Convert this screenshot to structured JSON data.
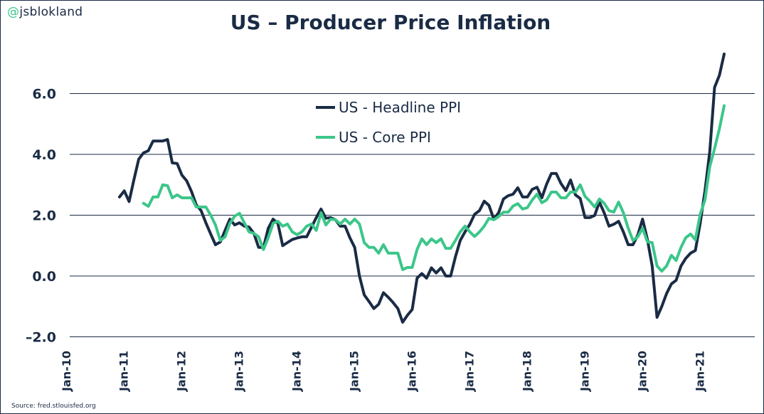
{
  "handle": {
    "at": "@",
    "name": "jsblokland"
  },
  "source": "Source: fred.stlouisfed.org",
  "colors": {
    "headline": "#1a2b45",
    "core": "#3cc68a",
    "grid": "#1a2b45"
  },
  "chart_data": {
    "type": "line",
    "title": "US – Producer Price Inflation",
    "xlabel": "",
    "ylabel": "",
    "ylim": [
      -2.0,
      7.3
    ],
    "yticks": [
      -2.0,
      0.0,
      2.0,
      4.0,
      6.0
    ],
    "ytick_labels": [
      "–2.0",
      "0.0",
      "2.0",
      "4.0",
      "6.0"
    ],
    "xtick_labels": [
      "Jan-10",
      "Jan-11",
      "Jan-12",
      "Jan-13",
      "Jan-14",
      "Jan-15",
      "Jan-16",
      "Jan-17",
      "Jan-18",
      "Jan-19",
      "Jan-20",
      "Jan-21"
    ],
    "grid": "horizontal",
    "legend_position": "top-center",
    "x": [
      "2010-12",
      "2011-01",
      "2011-02",
      "2011-03",
      "2011-04",
      "2011-05",
      "2011-06",
      "2011-07",
      "2011-08",
      "2011-09",
      "2011-10",
      "2011-11",
      "2011-12",
      "2012-01",
      "2012-02",
      "2012-03",
      "2012-04",
      "2012-05",
      "2012-06",
      "2012-07",
      "2012-08",
      "2012-09",
      "2012-10",
      "2012-11",
      "2012-12",
      "2013-01",
      "2013-02",
      "2013-03",
      "2013-04",
      "2013-05",
      "2013-06",
      "2013-07",
      "2013-08",
      "2013-09",
      "2013-10",
      "2013-11",
      "2013-12",
      "2014-01",
      "2014-02",
      "2014-03",
      "2014-04",
      "2014-05",
      "2014-06",
      "2014-07",
      "2014-08",
      "2014-09",
      "2014-10",
      "2014-11",
      "2014-12",
      "2015-01",
      "2015-02",
      "2015-03",
      "2015-04",
      "2015-05",
      "2015-06",
      "2015-07",
      "2015-08",
      "2015-09",
      "2015-10",
      "2015-11",
      "2015-12",
      "2016-01",
      "2016-02",
      "2016-03",
      "2016-04",
      "2016-05",
      "2016-06",
      "2016-07",
      "2016-08",
      "2016-09",
      "2016-10",
      "2016-11",
      "2016-12",
      "2017-01",
      "2017-02",
      "2017-03",
      "2017-04",
      "2017-05",
      "2017-06",
      "2017-07",
      "2017-08",
      "2017-09",
      "2017-10",
      "2017-11",
      "2017-12",
      "2018-01",
      "2018-02",
      "2018-03",
      "2018-04",
      "2018-05",
      "2018-06",
      "2018-07",
      "2018-08",
      "2018-09",
      "2018-10",
      "2018-11",
      "2018-12",
      "2019-01",
      "2019-02",
      "2019-03",
      "2019-04",
      "2019-05",
      "2019-06",
      "2019-07",
      "2019-08",
      "2019-09",
      "2019-10",
      "2019-11",
      "2019-12",
      "2020-01",
      "2020-02",
      "2020-03",
      "2020-04",
      "2020-05",
      "2020-06",
      "2020-07",
      "2020-08",
      "2020-09",
      "2020-10",
      "2020-11",
      "2020-12",
      "2021-01",
      "2021-02",
      "2021-03",
      "2021-04",
      "2021-05",
      "2021-06"
    ],
    "series": [
      {
        "name": "US - Headline PPI",
        "values": [
          2.6,
          2.8,
          2.45,
          3.16,
          3.84,
          4.05,
          4.12,
          4.44,
          4.44,
          4.44,
          4.49,
          3.72,
          3.7,
          3.32,
          3.13,
          2.78,
          2.34,
          2.15,
          1.75,
          1.38,
          1.03,
          1.12,
          1.5,
          1.87,
          1.68,
          1.75,
          1.64,
          1.61,
          1.4,
          0.94,
          0.94,
          1.57,
          1.87,
          1.73,
          1.0,
          1.1,
          1.2,
          1.25,
          1.29,
          1.29,
          1.6,
          1.92,
          2.2,
          1.9,
          1.92,
          1.85,
          1.64,
          1.64,
          1.26,
          0.94,
          0.0,
          -0.62,
          -0.84,
          -1.07,
          -0.93,
          -0.55,
          -0.7,
          -0.87,
          -1.07,
          -1.52,
          -1.29,
          -1.1,
          -0.07,
          0.08,
          -0.07,
          0.27,
          0.1,
          0.27,
          0.0,
          0.0,
          0.63,
          1.17,
          1.45,
          1.7,
          2.03,
          2.15,
          2.46,
          2.32,
          1.87,
          2.08,
          2.53,
          2.64,
          2.69,
          2.9,
          2.6,
          2.6,
          2.85,
          2.92,
          2.57,
          3.02,
          3.37,
          3.37,
          3.04,
          2.81,
          3.16,
          2.67,
          2.55,
          1.92,
          1.92,
          1.99,
          2.43,
          2.08,
          1.64,
          1.7,
          1.8,
          1.45,
          1.03,
          1.03,
          1.35,
          1.87,
          1.2,
          0.33,
          -1.36,
          -1.0,
          -0.58,
          -0.26,
          -0.14,
          0.33,
          0.58,
          0.75,
          0.84,
          1.73,
          2.8,
          4.1,
          6.2,
          6.6,
          7.3
        ]
      },
      {
        "name": "US - Core PPI",
        "values": [
          null,
          null,
          null,
          null,
          null,
          2.39,
          2.29,
          2.6,
          2.6,
          3.0,
          2.97,
          2.57,
          2.67,
          2.57,
          2.57,
          2.57,
          2.27,
          2.27,
          2.27,
          2.0,
          1.68,
          1.17,
          1.29,
          1.73,
          1.97,
          2.06,
          1.75,
          1.45,
          1.4,
          1.29,
          0.87,
          1.26,
          1.73,
          1.8,
          1.64,
          1.71,
          1.45,
          1.36,
          1.45,
          1.64,
          1.71,
          1.5,
          2.08,
          1.68,
          1.87,
          1.85,
          1.71,
          1.87,
          1.71,
          1.87,
          1.71,
          1.1,
          0.94,
          0.94,
          0.75,
          1.03,
          0.75,
          0.75,
          0.75,
          0.21,
          0.28,
          0.28,
          0.87,
          1.22,
          1.03,
          1.22,
          1.1,
          1.22,
          0.91,
          0.91,
          1.17,
          1.45,
          1.64,
          1.45,
          1.3,
          1.45,
          1.64,
          1.9,
          1.85,
          1.95,
          2.1,
          2.1,
          2.3,
          2.38,
          2.2,
          2.25,
          2.5,
          2.69,
          2.41,
          2.5,
          2.76,
          2.76,
          2.57,
          2.57,
          2.76,
          2.76,
          3.0,
          2.62,
          2.46,
          2.27,
          2.53,
          2.39,
          2.15,
          2.1,
          2.43,
          2.08,
          1.57,
          1.17,
          1.29,
          1.57,
          1.12,
          1.1,
          0.33,
          0.16,
          0.33,
          0.68,
          0.51,
          0.94,
          1.26,
          1.38,
          1.19,
          2.03,
          2.5,
          3.6,
          4.19,
          4.84,
          5.6
        ]
      }
    ]
  }
}
